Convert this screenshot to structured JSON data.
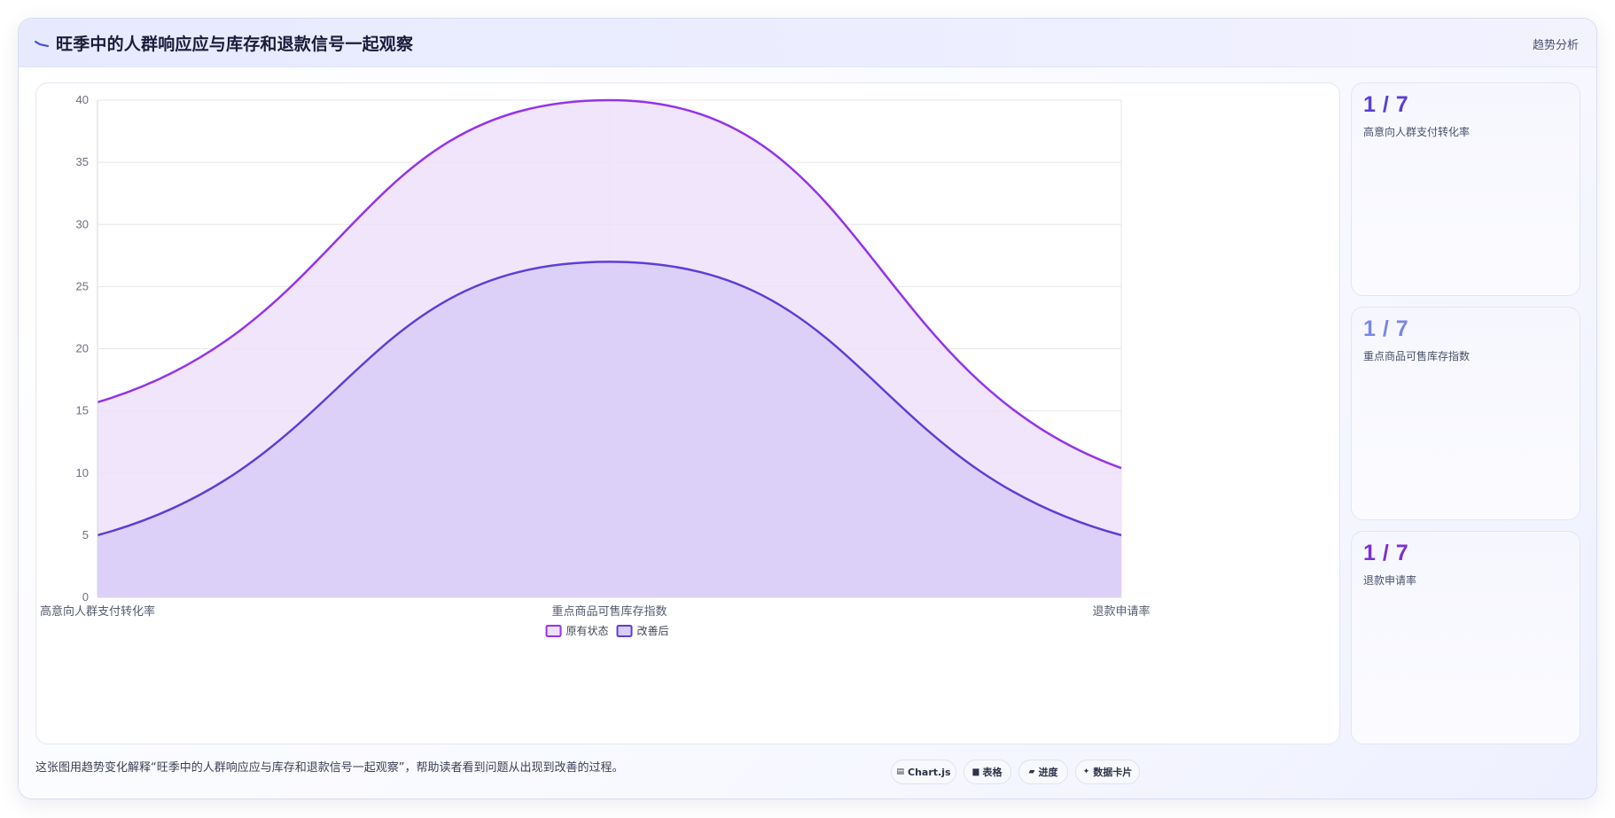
{
  "header": {
    "title": "旺季中的人群响应应与库存和退款信号一起观察",
    "tag": "趋势分析"
  },
  "chart_data": {
    "type": "area",
    "categories": [
      "高意向人群支付转化率",
      "重点商品可售库存指数",
      "退款申请率"
    ],
    "series": [
      {
        "name": "原有状态",
        "values": [
          15.7,
          40,
          10.4
        ],
        "color": "#9333ea",
        "fill": "#ede0fa"
      },
      {
        "name": "改善后",
        "values": [
          5,
          27,
          5
        ],
        "color": "#5b3fd6",
        "fill": "#d9ccf7"
      }
    ],
    "ylim": [
      0,
      40
    ],
    "yticks": [
      0,
      5,
      10,
      15,
      20,
      25,
      30,
      35,
      40
    ],
    "grid": true,
    "legend": "bottom",
    "smooth": true
  },
  "kpis": [
    {
      "value": "1 / 7",
      "label": "高意向人群支付转化率",
      "color": "#5b3fd6"
    },
    {
      "value": "1 / 7",
      "label": "重点商品可售库存指数",
      "color": "#7c86e6"
    },
    {
      "value": "1 / 7",
      "label": "退款申请率",
      "color": "#7c2fd8"
    }
  ],
  "footer": {
    "note": "这张图用趋势变化解释“旺季中的人群响应应与库存和退款信号一起观察”，帮助读者看到问题从出现到改善的过程。",
    "chips": [
      {
        "icon": "chart-icon",
        "glyph": "▤",
        "label": "Chart.js"
      },
      {
        "icon": "table-icon",
        "glyph": "▆",
        "label": "表格"
      },
      {
        "icon": "progress-icon",
        "glyph": "▰",
        "label": "进度"
      },
      {
        "icon": "data-card-icon",
        "glyph": "✦",
        "label": "数据卡片"
      }
    ]
  }
}
